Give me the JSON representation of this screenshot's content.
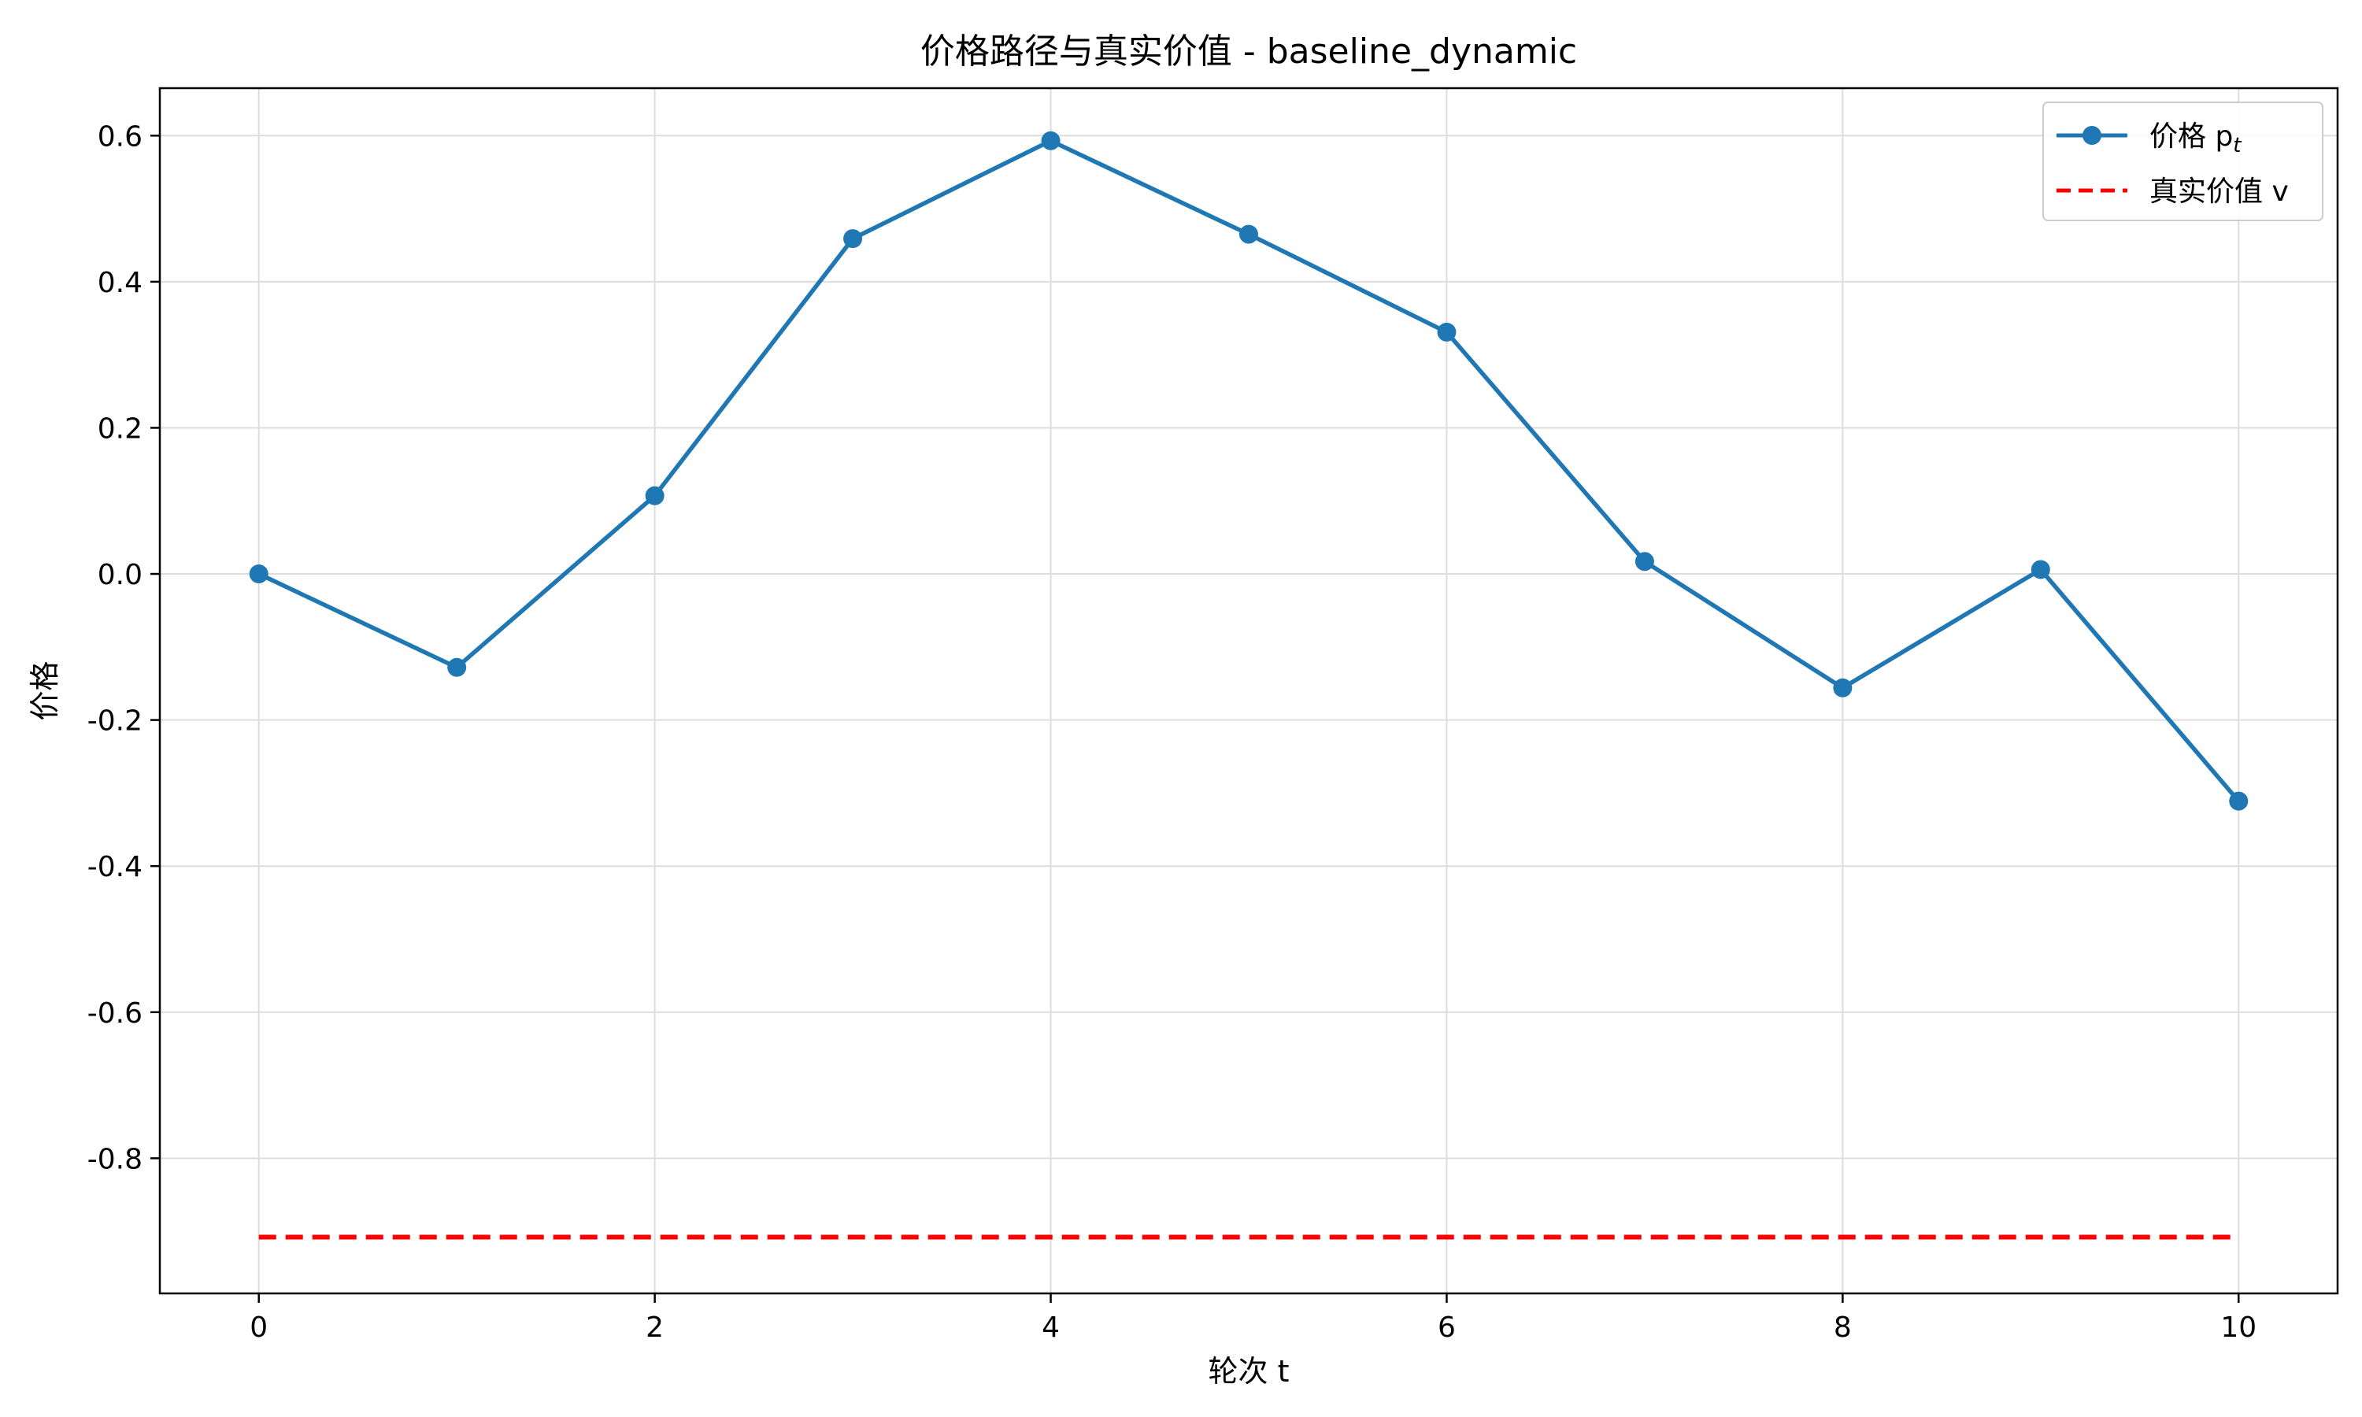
{
  "chart_data": {
    "type": "line",
    "title": "价格路径与真实价值 - baseline_dynamic",
    "xlabel": "轮次 t",
    "ylabel": "价格",
    "x": [
      0,
      1,
      2,
      3,
      4,
      5,
      6,
      7,
      8,
      9,
      10
    ],
    "xlim": [
      -0.5,
      10.5
    ],
    "ylim": [
      -0.985,
      0.665
    ],
    "xticks": [
      0,
      2,
      4,
      6,
      8,
      10
    ],
    "xtick_labels": [
      "0",
      "2",
      "4",
      "6",
      "8",
      "10"
    ],
    "yticks": [
      -0.8,
      -0.6,
      -0.4,
      -0.2,
      0.0,
      0.2,
      0.4,
      0.6
    ],
    "ytick_labels": [
      "-0.8",
      "-0.6",
      "-0.4",
      "-0.2",
      "0.0",
      "0.2",
      "0.4",
      "0.6"
    ],
    "grid": true,
    "legend_position": "top-right",
    "series": [
      {
        "name": "价格 p",
        "name_subscript": "t",
        "style": "solid-marker",
        "color": "#1f77b4",
        "values": [
          0.0,
          -0.128,
          0.107,
          0.459,
          0.593,
          0.465,
          0.331,
          0.017,
          -0.156,
          0.006,
          -0.311
        ]
      },
      {
        "name": "真实价值 v",
        "style": "dashed",
        "color": "#ff0000",
        "values": [
          -0.908,
          -0.908,
          -0.908,
          -0.908,
          -0.908,
          -0.908,
          -0.908,
          -0.908,
          -0.908,
          -0.908,
          -0.908
        ]
      }
    ]
  }
}
